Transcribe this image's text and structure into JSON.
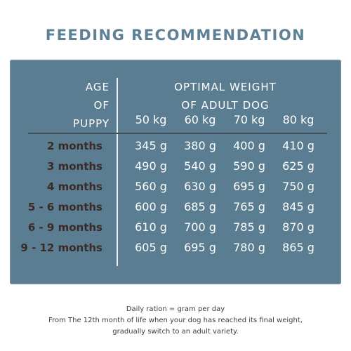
{
  "title": "FEEDING RECOMMENDATION",
  "table": {
    "age_header": [
      "AGE",
      "OF",
      "PUPPY"
    ],
    "weight_header": [
      "OPTIMAL WEIGHT",
      "OF ADULT DOG"
    ],
    "weights": [
      "50 kg",
      "60 kg",
      "70 kg",
      "80 kg"
    ],
    "rows": [
      {
        "age": "2 months",
        "values": [
          "345 g",
          "380 g",
          "400 g",
          "410 g"
        ]
      },
      {
        "age": "3 months",
        "values": [
          "490 g",
          "540 g",
          "590 g",
          "625 g"
        ]
      },
      {
        "age": "4 months",
        "values": [
          "560 g",
          "630 g",
          "695 g",
          "750 g"
        ]
      },
      {
        "age": "5 - 6 months",
        "values": [
          "600 g",
          "685 g",
          "765 g",
          "845 g"
        ]
      },
      {
        "age": "6 - 9 months",
        "values": [
          "610 g",
          "700 g",
          "785 g",
          "870 g"
        ]
      },
      {
        "age": "9 - 12 months",
        "values": [
          "605 g",
          "695 g",
          "780 g",
          "865 g"
        ]
      }
    ]
  },
  "footer": [
    "Daily ration = gram per day",
    "From The 12th month of life when your dog has reached its final weight,",
    "gradually switch to an adult variety."
  ],
  "colors": {
    "title": "#5f8196",
    "panel": "#5a7d91",
    "age_text": "#3b2a26",
    "value_text": "#ffffff"
  }
}
